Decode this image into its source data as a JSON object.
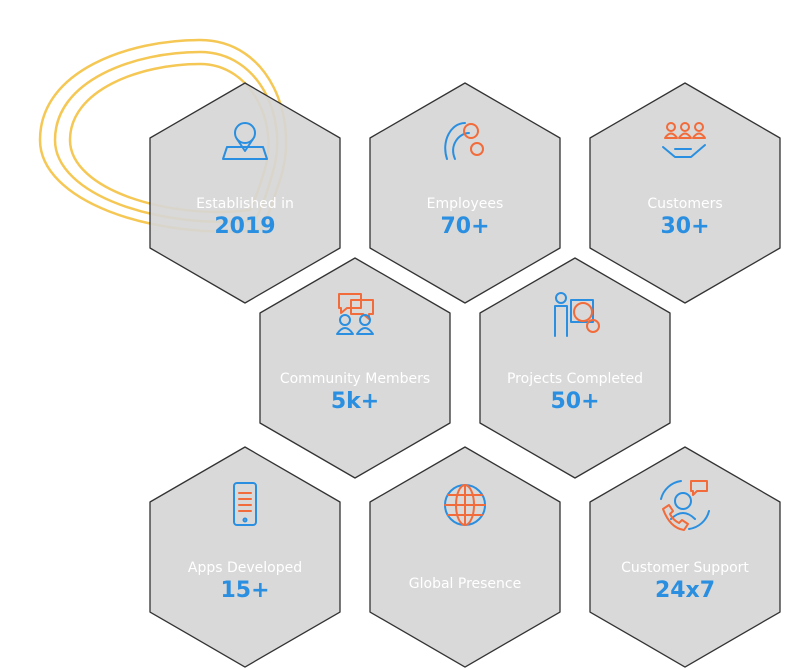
{
  "stats": [
    {
      "label": "Established in",
      "value": "2019"
    },
    {
      "label": "Employees",
      "value": "70+"
    },
    {
      "label": "Customers",
      "value": "30+"
    },
    {
      "label": "Community Members",
      "value": "5k+"
    },
    {
      "label": "Projects Completed",
      "value": "50+"
    },
    {
      "label": "Apps Developed",
      "value": "15+"
    },
    {
      "label": "Global Presence"
    },
    {
      "label": "Customer Support",
      "value": "24x7"
    }
  ]
}
